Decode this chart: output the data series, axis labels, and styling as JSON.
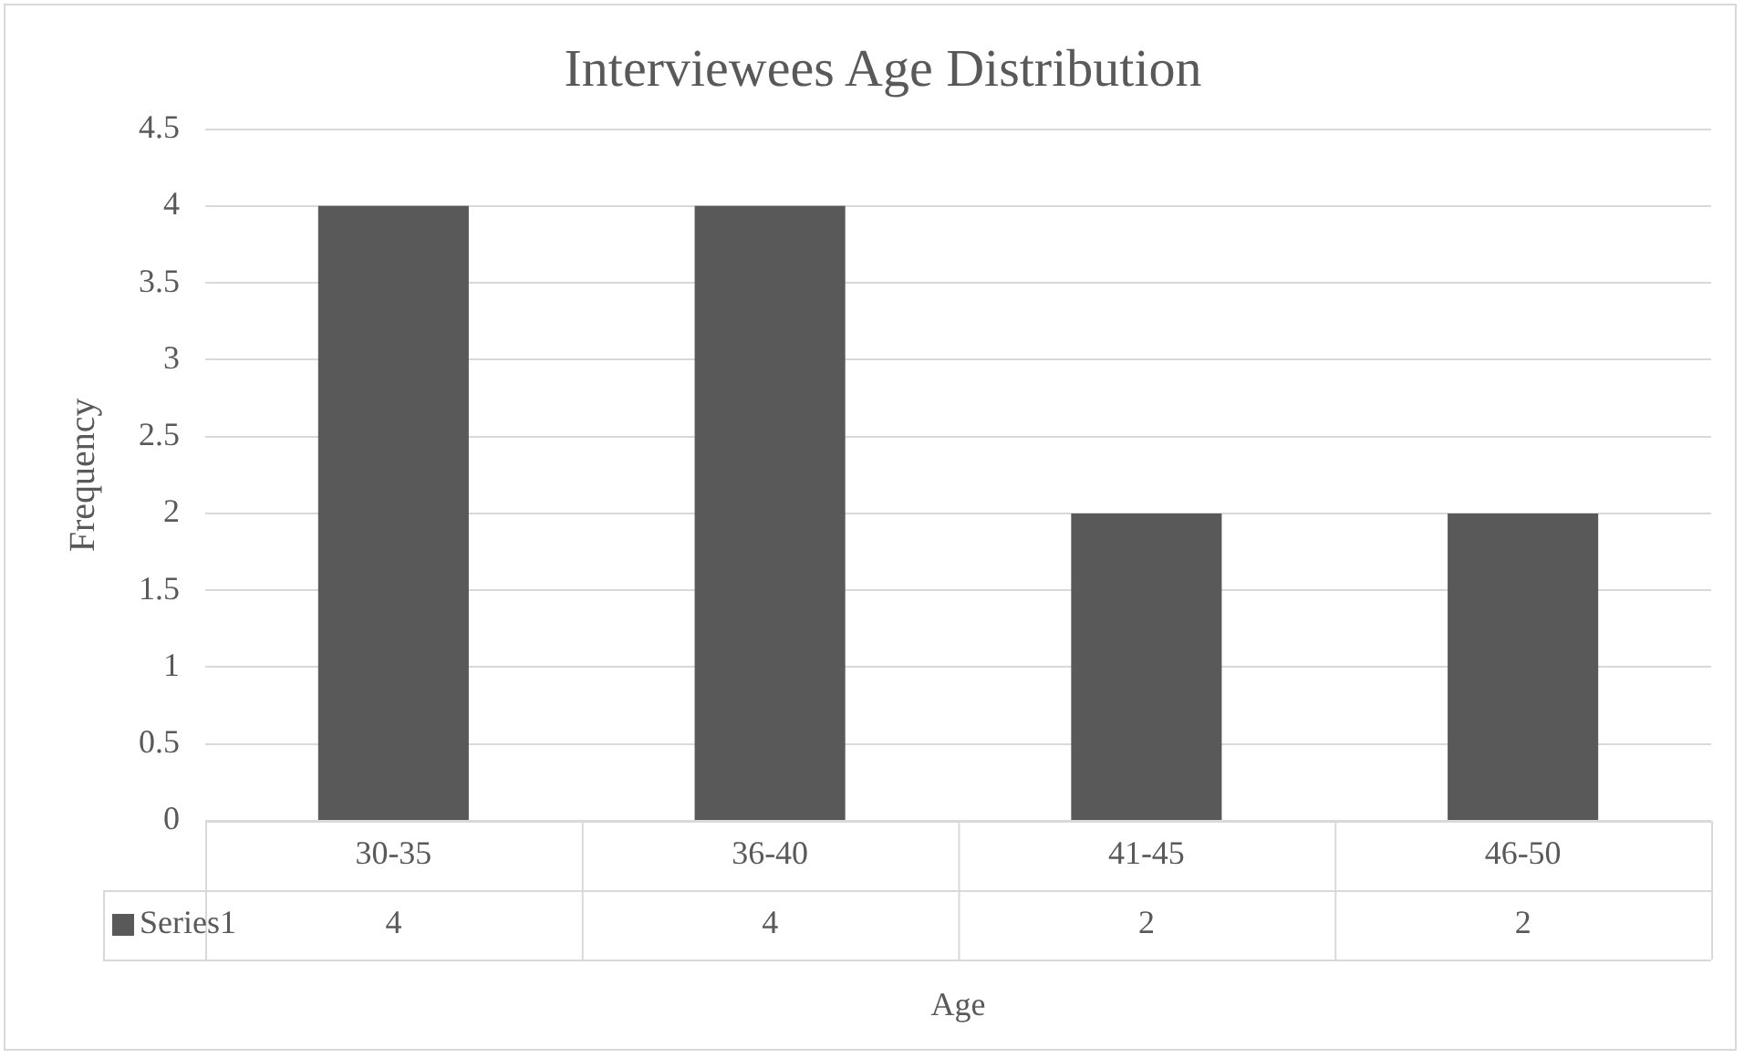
{
  "chart_data": {
    "type": "bar",
    "title": "Interviewees Age Distribution",
    "xlabel": "Age",
    "ylabel": "Frequency",
    "categories": [
      "30-35",
      "36-40",
      "41-45",
      "46-50"
    ],
    "series": [
      {
        "name": "Series1",
        "color": "#595959",
        "values": [
          4,
          4,
          2,
          2
        ]
      }
    ],
    "ylim": [
      0,
      4.5
    ],
    "yticks": [
      0,
      0.5,
      1,
      1.5,
      2,
      2.5,
      3,
      3.5,
      4,
      4.5
    ],
    "grid": "y",
    "data_labels": true
  }
}
